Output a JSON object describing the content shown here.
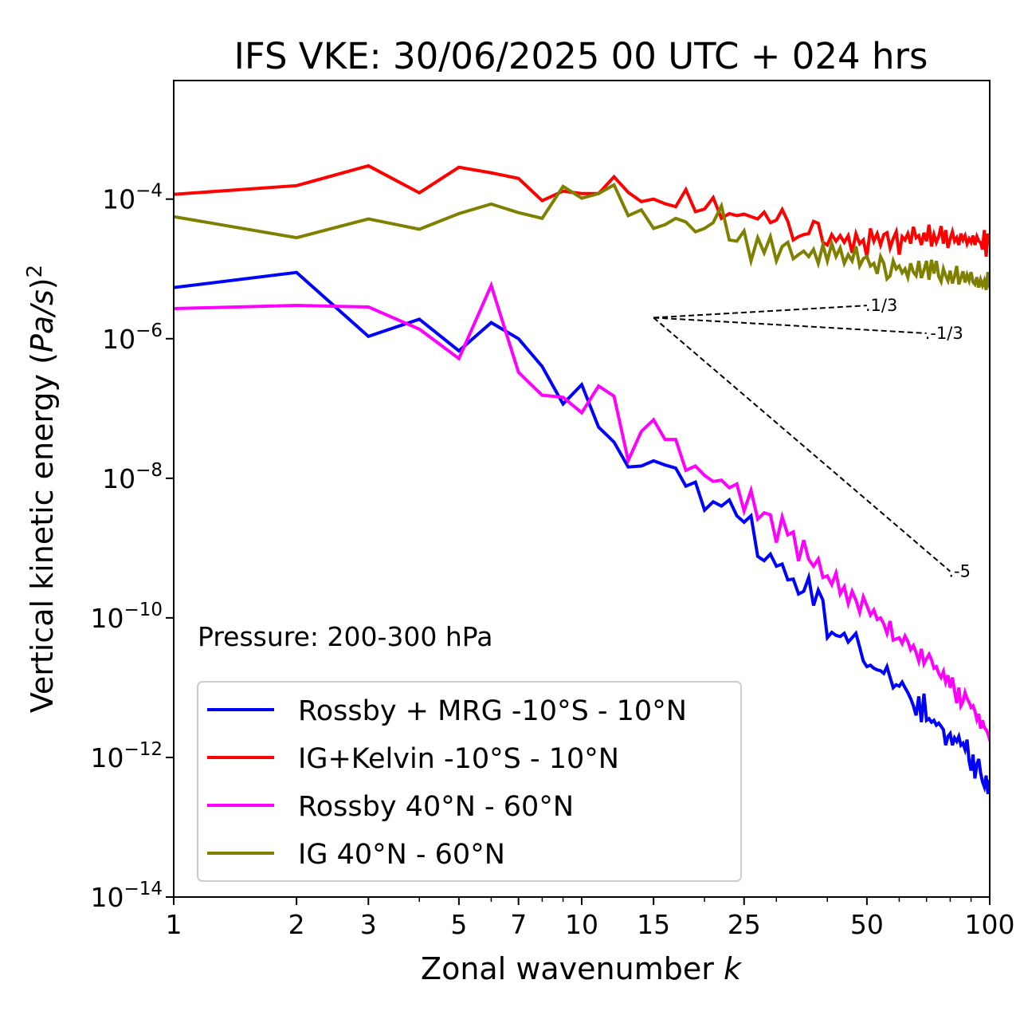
{
  "chart_data": {
    "type": "line",
    "title": "IFS VKE: 30/06/2025 00 UTC + 024 hrs",
    "xlabel": "Zonal wavenumber k",
    "xlabel_main": "Zonal wavenumber ",
    "xlabel_var": "k",
    "ylabel": "Vertical kinetic energy (Pa/s)^2",
    "ylabel_main": "Vertical kinetic energy (",
    "ylabel_unit": "Pa/s",
    "ylabel_close": ")",
    "ylabel_sup": "2",
    "xscale": "log",
    "yscale": "log",
    "xlim": [
      1,
      100
    ],
    "ylim": [
      1e-14,
      0.005
    ],
    "x_ticks": [
      1,
      2,
      3,
      5,
      7,
      10,
      15,
      25,
      50,
      100
    ],
    "x_tick_labels": [
      "1",
      "2",
      "3",
      "5",
      "7",
      "10",
      "15",
      "25",
      "50",
      "100"
    ],
    "y_ticks": [
      1e-14,
      1e-12,
      1e-10,
      1e-08,
      1e-06,
      0.0001
    ],
    "y_tick_labels": [
      {
        "base": "10",
        "exp": "−14"
      },
      {
        "base": "10",
        "exp": "−12"
      },
      {
        "base": "10",
        "exp": "−10"
      },
      {
        "base": "10",
        "exp": "−8"
      },
      {
        "base": "10",
        "exp": "−6"
      },
      {
        "base": "10",
        "exp": "−4"
      }
    ],
    "grid": false,
    "legend_placement": "lower-left",
    "annotation": "Pressure: 200-300 hPa",
    "x": [
      1,
      2,
      3,
      4,
      5,
      6,
      7,
      8,
      9,
      10,
      11,
      12,
      13,
      14,
      15,
      16,
      17,
      18,
      19,
      20,
      21,
      22,
      23,
      24,
      25,
      26,
      27,
      28,
      29,
      30,
      31,
      32,
      33,
      34,
      35,
      36,
      37,
      38,
      39,
      40,
      41,
      42,
      43,
      44,
      45,
      46,
      47,
      48,
      49,
      50,
      51,
      52,
      53,
      54,
      55,
      56,
      57,
      58,
      59,
      60,
      61,
      62,
      63,
      64,
      65,
      66,
      67,
      68,
      69,
      70,
      71,
      72,
      73,
      74,
      75,
      76,
      77,
      78,
      79,
      80,
      81,
      82,
      83,
      84,
      85,
      86,
      87,
      88,
      89,
      90,
      91,
      92,
      93,
      94,
      95,
      96,
      97,
      98,
      99,
      100
    ],
    "series": [
      {
        "name": "Rossby + MRG -10°S - 10°N",
        "color": "#0000ff",
        "values": [
          5.4e-06,
          8.9e-06,
          1.08e-06,
          1.9e-06,
          6.7e-07,
          1.7e-06,
          1e-06,
          4e-07,
          1.16e-07,
          2.2e-07,
          5.4e-08,
          3.3e-08,
          1.45e-08,
          1.5e-08,
          1.78e-08,
          1.55e-08,
          1.4e-08,
          7.7e-09,
          8.8e-09,
          3.5e-09,
          4.6e-09,
          4e-09,
          4.9e-09,
          2.9e-09,
          2.35e-09,
          2.9e-09,
          7.6e-10,
          6.6e-10,
          8.2e-10,
          5.5e-10,
          5.9e-10,
          3.5e-10,
          3.6e-10,
          2.2e-10,
          2.4e-10,
          3.8e-10,
          1.5e-10,
          2.5e-10,
          1.8e-10,
          5.2e-11,
          6.2e-11,
          5.6e-11,
          5.4e-11,
          6e-11,
          4.5e-11,
          5.2e-11,
          6e-11,
          3.8e-11,
          2.4e-11,
          2e-11,
          2.1e-11,
          1.9e-11,
          1.8e-11,
          1.75e-11,
          1.6e-11,
          2e-11,
          1.4e-11,
          1e-11,
          1.1e-11,
          1.05e-11,
          1.2e-11,
          1e-11,
          8.5e-12,
          7e-12,
          5.5e-12,
          4e-12,
          7.5e-12,
          3.2e-12,
          8.2e-12,
          3.4e-12,
          3.6e-12,
          3.2e-12,
          3.4e-12,
          2.9e-12,
          3.1e-12,
          2.8e-12,
          2.5e-12,
          1.5e-12,
          2e-12,
          2.2e-12,
          1.5e-12,
          1.9e-12,
          1.7e-12,
          2e-12,
          1.5e-12,
          1.6e-12,
          1.3e-12,
          1.8e-12,
          9e-13,
          6.5e-13,
          1.1e-12,
          5e-13,
          8e-13,
          9.5e-13,
          6e-13,
          4.5e-13,
          3.8e-13,
          5.5e-13,
          3e-13,
          4.5e-13
        ]
      },
      {
        "name": "IG+Kelvin -10°S - 10°N",
        "color": "#ff0000",
        "values": [
          0.000117,
          0.000156,
          0.0003,
          0.000123,
          0.000286,
          0.000238,
          0.000198,
          9.5e-05,
          0.00013,
          0.00012,
          0.00012,
          0.000209,
          0.000125,
          9.2e-05,
          0.0001,
          8.6e-05,
          7.8e-05,
          0.000137,
          6.6e-05,
          7.2e-05,
          0.000105,
          5.3e-05,
          6.2e-05,
          5.8e-05,
          6.1e-05,
          5.6e-05,
          5.2e-05,
          6.5e-05,
          4.6e-05,
          5e-05,
          7.1e-05,
          4.8e-05,
          2.6e-05,
          2.9e-05,
          3.1e-05,
          3.2e-05,
          4.8e-05,
          4.5e-05,
          2.4e-05,
          2.2e-05,
          3.1e-05,
          2.5e-05,
          3e-05,
          2.4e-05,
          3e-05,
          1.7e-05,
          3.2e-05,
          2.3e-05,
          2.6e-05,
          1.5e-05,
          3.8e-05,
          2.5e-05,
          3.2e-05,
          2.2e-05,
          3.1e-05,
          3.3e-05,
          2e-05,
          2.7e-05,
          3.4e-05,
          1.6e-05,
          2.9e-05,
          2.6e-05,
          3.2e-05,
          2.3e-05,
          4e-05,
          2.8e-05,
          3e-05,
          2.2e-05,
          3.3e-05,
          2.5e-05,
          4.3e-05,
          2.1e-05,
          3.1e-05,
          2.4e-05,
          2.9e-05,
          4.1e-05,
          2.3e-05,
          3.6e-05,
          2e-05,
          2.7e-05,
          3.4e-05,
          2.5e-05,
          2.8e-05,
          2.2e-05,
          3.2e-05,
          2.6e-05,
          3e-05,
          2.3e-05,
          2.7e-05,
          2.4e-05,
          3e-05,
          2.2e-05,
          2.9e-05,
          2.5e-05,
          2.4e-05,
          1.9e-05,
          3.6e-05,
          1.5e-05,
          3.2e-05,
          2.4e-05
        ]
      },
      {
        "name": "Rossby 40°N - 60°N",
        "color": "#ff00ff",
        "values": [
          2.7e-06,
          3e-06,
          2.85e-06,
          1.37e-06,
          5.2e-07,
          5.8e-06,
          3.3e-07,
          1.55e-07,
          1.45e-07,
          8.7e-08,
          2.1e-07,
          1.5e-07,
          1.8e-08,
          4.7e-08,
          6.9e-08,
          3.6e-08,
          3.6e-08,
          1.3e-08,
          1.5e-08,
          1.1e-08,
          9e-09,
          9.4e-09,
          7.3e-09,
          8.3e-09,
          3.4e-09,
          6.7e-09,
          2.6e-09,
          3.2e-09,
          3e-09,
          1.2e-09,
          2.8e-09,
          1.55e-09,
          1.7e-09,
          6.5e-10,
          1.3e-09,
          6.9e-10,
          5.5e-10,
          7e-10,
          3.8e-10,
          4e-10,
          3e-10,
          4.4e-10,
          2.2e-10,
          2.8e-10,
          1.6e-10,
          2.4e-10,
          1.8e-10,
          1.2e-10,
          2e-10,
          1.5e-10,
          1.1e-10,
          1.3e-10,
          9.5e-11,
          1e-10,
          8.2e-11,
          6e-11,
          9e-11,
          4.8e-11,
          5e-11,
          5.2e-11,
          4.3e-11,
          5.5e-11,
          4.6e-11,
          3.5e-11,
          4e-11,
          3.2e-11,
          2.4e-11,
          3.6e-11,
          2.2e-11,
          2.6e-11,
          3e-11,
          2.5e-11,
          1.9e-11,
          2e-11,
          1.6e-11,
          1.4e-11,
          1.7e-11,
          1.2e-11,
          1.5e-11,
          1e-11,
          1.4e-11,
          9e-12,
          6e-12,
          1e-11,
          5.5e-12,
          6.3e-12,
          8.5e-12,
          7e-12,
          6.2e-12,
          5.2e-12,
          5.5e-12,
          4.6e-12,
          3.5e-12,
          4.2e-12,
          2.6e-12,
          3.4e-12,
          2.7e-12,
          2.5e-12,
          2.2e-12,
          1.8e-12
        ]
      },
      {
        "name": "IG 40°N - 60°N",
        "color": "#808000",
        "values": [
          5.6e-05,
          2.8e-05,
          5.2e-05,
          3.7e-05,
          6.2e-05,
          8.5e-05,
          6.4e-05,
          5.3e-05,
          0.000152,
          0.000103,
          0.00012,
          0.00016,
          5.8e-05,
          7e-05,
          3.8e-05,
          4.3e-05,
          5.3e-05,
          4.7e-05,
          3.4e-05,
          3.8e-05,
          4.6e-05,
          8e-05,
          2.6e-05,
          2.5e-05,
          3.5e-05,
          1.3e-05,
          2.8e-05,
          1.7e-05,
          2.9e-05,
          1.3e-05,
          2.1e-05,
          2.4e-05,
          1.4e-05,
          1.6e-05,
          1.8e-05,
          1.5e-05,
          1.9e-05,
          1.2e-05,
          2.2e-05,
          1.3e-05,
          2.3e-05,
          1.5e-05,
          2e-05,
          1.2e-05,
          1.6e-05,
          1.3e-05,
          2.1e-05,
          1.1e-05,
          1.4e-05,
          1.5e-05,
          1.1e-05,
          1.2e-05,
          8.5e-06,
          1.5e-05,
          1.2e-05,
          7.2e-06,
          8e-06,
          1.3e-05,
          1e-05,
          1.1e-05,
          8.8e-06,
          1e-05,
          7.6e-06,
          1.2e-05,
          9e-06,
          8e-06,
          1.3e-05,
          7.4e-06,
          9.6e-06,
          1.3e-05,
          7e-06,
          1.35e-05,
          8.6e-06,
          1.3e-05,
          7.8e-06,
          6.6e-06,
          1e-05,
          8e-06,
          6.8e-06,
          9.4e-06,
          6.2e-06,
          7.8e-06,
          1.1e-05,
          6e-06,
          7.4e-06,
          9.2e-06,
          6.4e-06,
          8.2e-06,
          6.8e-06,
          9e-06,
          6.5e-06,
          6e-06,
          7.6e-06,
          5.4e-06,
          7e-06,
          5.8e-06,
          6.8e-06,
          5e-06,
          9e-06,
          5.6e-06
        ]
      }
    ],
    "reference_lines": [
      {
        "label": "1/3",
        "slope": 0.3333,
        "k_start": 15,
        "k_end": 50,
        "v_start": 2e-06
      },
      {
        "label": "-1/3",
        "slope": -0.3333,
        "k_start": 15,
        "k_end": 70,
        "v_start": 2e-06
      },
      {
        "label": "-5",
        "slope": -5,
        "k_start": 15,
        "k_end": 80,
        "v_start": 2e-06
      }
    ]
  }
}
